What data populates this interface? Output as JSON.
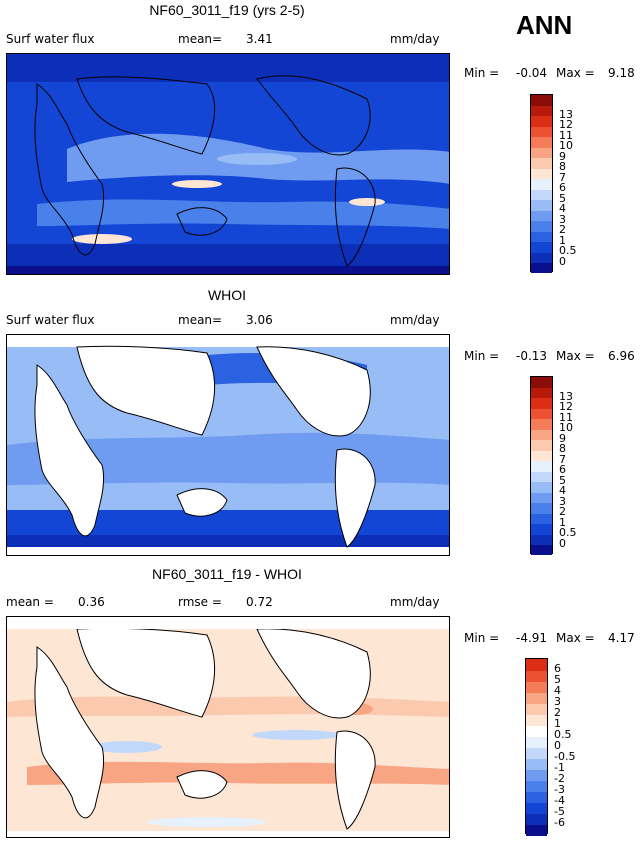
{
  "season": "ANN",
  "colors": {
    "abs_scale": [
      "#0a0f8c",
      "#0d2fb8",
      "#1446d6",
      "#2b62e2",
      "#4a80ea",
      "#6f9cf0",
      "#98bcf5",
      "#c1d8fa",
      "#e6f1fd",
      "#fde6d4",
      "#fbc9ad",
      "#f8a583",
      "#f47c59",
      "#ec5231",
      "#dc2d15",
      "#b71a0b",
      "#8a0d07"
    ],
    "diff_scale": [
      "#0a0f8c",
      "#0d2fb8",
      "#1446d6",
      "#2b62e2",
      "#4a80ea",
      "#6f9cf0",
      "#98bcf5",
      "#c1d8fa",
      "#e6f1fd",
      "#ffffff",
      "#fde6d4",
      "#fbc9ad",
      "#f8a583",
      "#f47c59",
      "#ec5231",
      "#dc2d15",
      "#b71a0b",
      "#8a0d07"
    ]
  },
  "chart_data": [
    {
      "type": "heatmap",
      "title": "NF60_3011_f19 (yrs 2-5)",
      "field": "Surf water flux",
      "mean_label": "mean=",
      "mean": "3.41",
      "units": "mm/day",
      "min_label": "Min =",
      "min": "-0.04",
      "max_label": "Max =",
      "max": "9.18",
      "colorbar_levels": [
        "0",
        "0.5",
        "1",
        "2",
        "3",
        "4",
        "5",
        "6",
        "7",
        "8",
        "9",
        "10",
        "11",
        "12",
        "13"
      ]
    },
    {
      "type": "heatmap",
      "title": "WHOI",
      "field": "Surf water flux",
      "mean_label": "mean=",
      "mean": "3.06",
      "units": "mm/day",
      "min_label": "Min =",
      "min": "-0.13",
      "max_label": "Max =",
      "max": "6.96",
      "colorbar_levels": [
        "0",
        "0.5",
        "1",
        "2",
        "3",
        "4",
        "5",
        "6",
        "7",
        "8",
        "9",
        "10",
        "11",
        "12",
        "13"
      ]
    },
    {
      "type": "heatmap",
      "title": "NF60_3011_f19 - WHOI",
      "mean_label": "mean =",
      "mean": "0.36",
      "rmse_label": "rmse =",
      "rmse": "0.72",
      "units": "mm/day",
      "min_label": "Min =",
      "min": "-4.91",
      "max_label": "Max =",
      "max": "4.17",
      "colorbar_levels": [
        "-6",
        "-5",
        "-4",
        "-3",
        "-2",
        "-1",
        "-0.5",
        "0",
        "0.5",
        "1",
        "2",
        "3",
        "4",
        "5",
        "6"
      ]
    }
  ]
}
